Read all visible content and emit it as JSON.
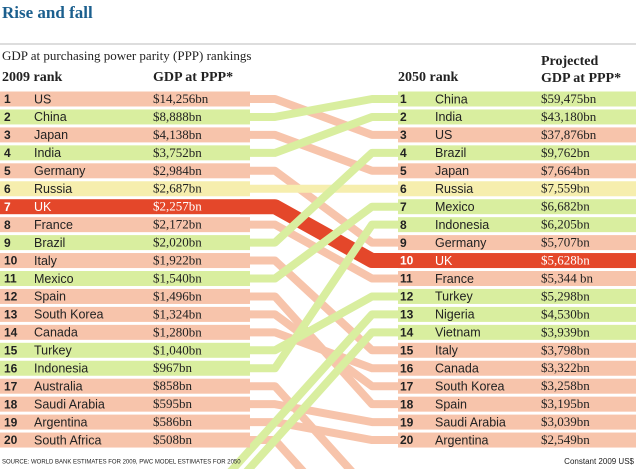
{
  "header": {
    "title": "Rise and fall",
    "subtitle": "GDP at purchasing power parity (PPP) rankings"
  },
  "left": {
    "heading_rank": "2009 rank",
    "heading_gdp": "GDP at PPP*",
    "rows": [
      {
        "rank": "1",
        "country": "US",
        "gdp": "$14,256bn",
        "color": "#f7c4ab"
      },
      {
        "rank": "2",
        "country": "China",
        "gdp": "$8,888bn",
        "color": "#d9ee9f"
      },
      {
        "rank": "3",
        "country": "Japan",
        "gdp": "$4,138bn",
        "color": "#f7c4ab"
      },
      {
        "rank": "4",
        "country": "India",
        "gdp": "$3,752bn",
        "color": "#d9ee9f"
      },
      {
        "rank": "5",
        "country": "Germany",
        "gdp": "$2,984bn",
        "color": "#f7c4ab"
      },
      {
        "rank": "6",
        "country": "Russia",
        "gdp": "$2,687bn",
        "color": "#f6eeae"
      },
      {
        "rank": "7",
        "country": "UK",
        "gdp": "$2,257bn",
        "color": "#e4472a"
      },
      {
        "rank": "8",
        "country": "France",
        "gdp": "$2,172bn",
        "color": "#f7c4ab"
      },
      {
        "rank": "9",
        "country": "Brazil",
        "gdp": "$2,020bn",
        "color": "#d9ee9f"
      },
      {
        "rank": "10",
        "country": "Italy",
        "gdp": "$1,922bn",
        "color": "#f7c4ab"
      },
      {
        "rank": "11",
        "country": "Mexico",
        "gdp": "$1,540bn",
        "color": "#d9ee9f"
      },
      {
        "rank": "12",
        "country": "Spain",
        "gdp": "$1,496bn",
        "color": "#f7c4ab"
      },
      {
        "rank": "13",
        "country": "South Korea",
        "gdp": "$1,324bn",
        "color": "#f7c4ab"
      },
      {
        "rank": "14",
        "country": "Canada",
        "gdp": "$1,280bn",
        "color": "#f7c4ab"
      },
      {
        "rank": "15",
        "country": "Turkey",
        "gdp": "$1,040bn",
        "color": "#d9ee9f"
      },
      {
        "rank": "16",
        "country": "Indonesia",
        "gdp": "$967bn",
        "color": "#d9ee9f"
      },
      {
        "rank": "17",
        "country": "Australia",
        "gdp": "$858bn",
        "color": "#f7c4ab"
      },
      {
        "rank": "18",
        "country": "Saudi Arabia",
        "gdp": "$595bn",
        "color": "#f7c4ab"
      },
      {
        "rank": "19",
        "country": "Argentina",
        "gdp": "$586bn",
        "color": "#f7c4ab"
      },
      {
        "rank": "20",
        "country": "South Africa",
        "gdp": "$508bn",
        "color": "#f7c4ab"
      }
    ]
  },
  "right": {
    "heading_rank": "2050 rank",
    "heading_gdp_1": "Projected",
    "heading_gdp_2": "GDP at PPP*",
    "rows": [
      {
        "rank": "1",
        "country": "China",
        "gdp": "$59,475bn",
        "color": "#d9ee9f"
      },
      {
        "rank": "2",
        "country": "India",
        "gdp": "$43,180bn",
        "color": "#d9ee9f"
      },
      {
        "rank": "3",
        "country": "US",
        "gdp": "$37,876bn",
        "color": "#f7c4ab"
      },
      {
        "rank": "4",
        "country": "Brazil",
        "gdp": "$9,762bn",
        "color": "#d9ee9f"
      },
      {
        "rank": "5",
        "country": "Japan",
        "gdp": "$7,664bn",
        "color": "#f7c4ab"
      },
      {
        "rank": "6",
        "country": "Russia",
        "gdp": "$7,559bn",
        "color": "#f6eeae"
      },
      {
        "rank": "7",
        "country": "Mexico",
        "gdp": "$6,682bn",
        "color": "#d9ee9f"
      },
      {
        "rank": "8",
        "country": "Indonesia",
        "gdp": "$6,205bn",
        "color": "#d9ee9f"
      },
      {
        "rank": "9",
        "country": "Germany",
        "gdp": "$5,707bn",
        "color": "#f7c4ab"
      },
      {
        "rank": "10",
        "country": "UK",
        "gdp": "$5,628bn",
        "color": "#e4472a"
      },
      {
        "rank": "11",
        "country": "France",
        "gdp": "$5,344 bn",
        "color": "#f7c4ab"
      },
      {
        "rank": "12",
        "country": "Turkey",
        "gdp": "$5,298bn",
        "color": "#d9ee9f"
      },
      {
        "rank": "13",
        "country": "Nigeria",
        "gdp": "$4,530bn",
        "color": "#d9ee9f"
      },
      {
        "rank": "14",
        "country": "Vietnam",
        "gdp": "$3,939bn",
        "color": "#d9ee9f"
      },
      {
        "rank": "15",
        "country": "Italy",
        "gdp": "$3,798bn",
        "color": "#f7c4ab"
      },
      {
        "rank": "16",
        "country": "Canada",
        "gdp": "$3,322bn",
        "color": "#f7c4ab"
      },
      {
        "rank": "17",
        "country": "South Korea",
        "gdp": "$3,258bn",
        "color": "#f7c4ab"
      },
      {
        "rank": "18",
        "country": "Spain",
        "gdp": "$3,195bn",
        "color": "#f7c4ab"
      },
      {
        "rank": "19",
        "country": "Saudi Arabia",
        "gdp": "$3,039bn",
        "color": "#f7c4ab"
      },
      {
        "rank": "20",
        "country": "Argentina",
        "gdp": "$2,549bn",
        "color": "#f7c4ab"
      }
    ]
  },
  "footer": {
    "source": "SOURCE: WORLD BANK ESTIMATES FOR 2009, PWC MODEL ESTIMATES FOR 2050",
    "note": "Constant 2009 US$"
  }
}
